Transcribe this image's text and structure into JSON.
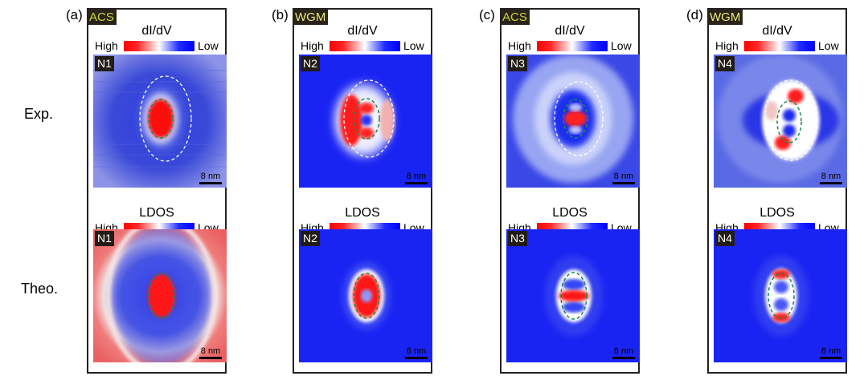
{
  "row_labels": {
    "experiment": "Exp.",
    "theory": "Theo."
  },
  "panels": [
    {
      "label": "(a)",
      "mode": "ACS",
      "mode_color": "#c9d93a",
      "exp_title": "dI/dV",
      "theo_title": "LDOS",
      "high": "High",
      "low": "Low",
      "exp_tag": "N1",
      "theo_tag": "N1",
      "scale": "8 nm"
    },
    {
      "label": "(b)",
      "mode": "WGM",
      "mode_color": "#e6ec7a",
      "exp_title": "dI/dV",
      "theo_title": "LDOS",
      "high": "High",
      "low": "Low",
      "exp_tag": "N2",
      "theo_tag": "N2",
      "scale": "8 nm"
    },
    {
      "label": "(c)",
      "mode": "ACS",
      "mode_color": "#c9d93a",
      "exp_title": "dI/dV",
      "theo_title": "LDOS",
      "high": "High",
      "low": "Low",
      "exp_tag": "N3",
      "theo_tag": "N3",
      "scale": "8 nm"
    },
    {
      "label": "(d)",
      "mode": "WGM",
      "mode_color": "#e6ec7a",
      "exp_title": "dI/dV",
      "theo_title": "LDOS",
      "high": "High",
      "low": "Low",
      "exp_tag": "N4",
      "theo_tag": "N4",
      "scale": "8 nm"
    }
  ]
}
